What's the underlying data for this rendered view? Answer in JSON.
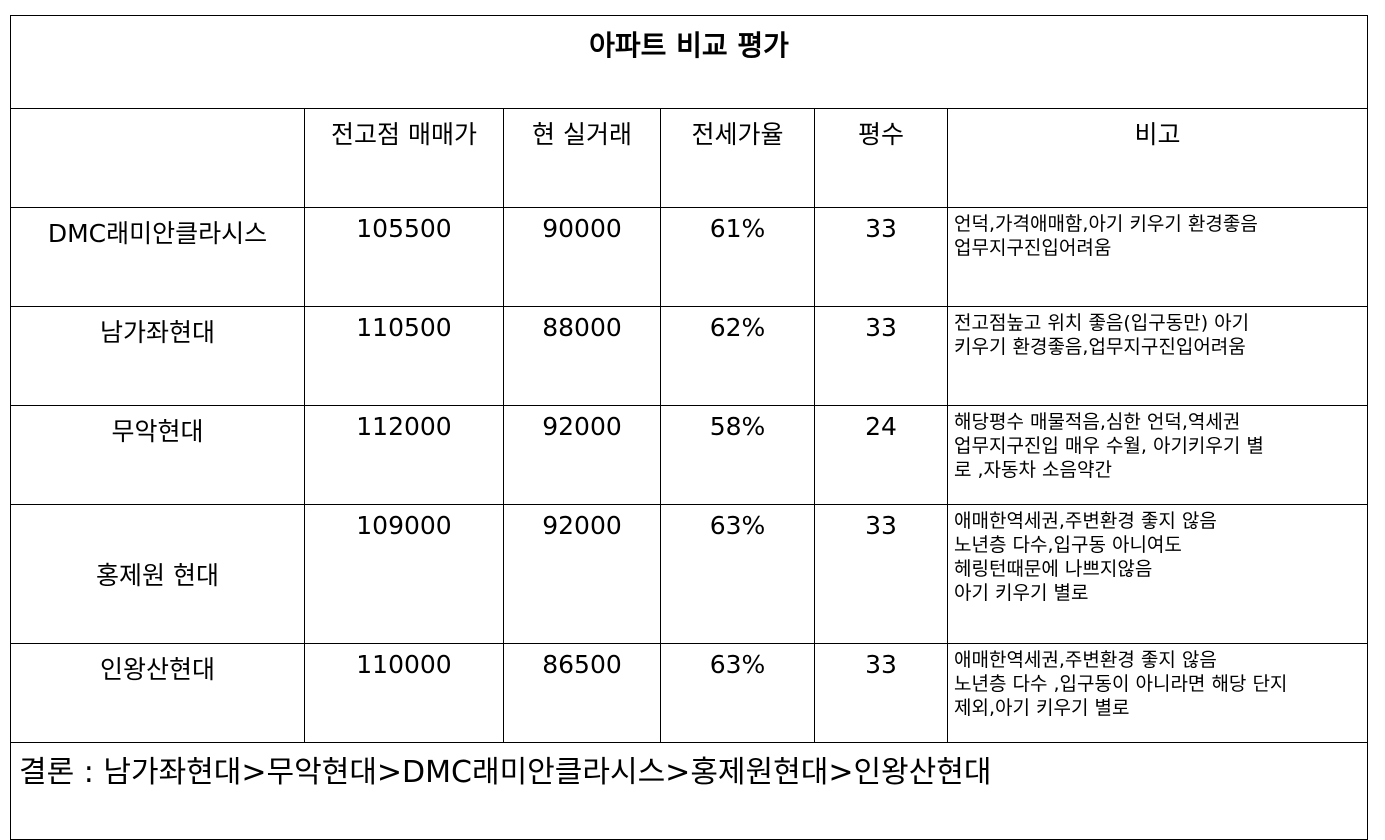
{
  "title": "아파트 비교 평가",
  "headers": [
    "",
    "전고점 매매가",
    "현 실거래",
    "전세가율",
    "평수",
    "비고"
  ],
  "rows": [
    {
      "name": "DMC래미안클라시스",
      "peak_price": "105500",
      "current_price": "90000",
      "jeonse_ratio": "61%",
      "size": "33",
      "notes": [
        "언덕,가격애매함,아기 키우기 환경좋음",
        "업무지구진입어려움"
      ]
    },
    {
      "name": "남가좌현대",
      "peak_price": "110500",
      "current_price": "88000",
      "jeonse_ratio": "62%",
      "size": "33",
      "notes": [
        "전고점높고 위치 좋음(입구동만) 아기",
        "키우기 환경좋음,업무지구진입어려움"
      ]
    },
    {
      "name": "무악현대",
      "peak_price": "112000",
      "current_price": "92000",
      "jeonse_ratio": "58%",
      "size": "24",
      "notes": [
        "해당평수 매물적음,심한 언덕,역세권",
        "업무지구진입 매우 수월, 아기키우기 별",
        "로 ,자동차 소음약간"
      ]
    },
    {
      "name": "홍제원 현대",
      "peak_price": "109000",
      "current_price": "92000",
      "jeonse_ratio": "63%",
      "size": "33",
      "notes": [
        "애매한역세권,주변환경 좋지 않음",
        "노년층 다수,입구동 아니여도",
        "헤링턴때문에 나쁘지않음",
        "아기 키우기 별로"
      ]
    },
    {
      "name": "인왕산현대",
      "peak_price": "110000",
      "current_price": "86500",
      "jeonse_ratio": "63%",
      "size": "33",
      "notes": [
        "애매한역세권,주변환경 좋지 않음",
        "노년층 다수 ,입구동이 아니라면 해당 단지",
        "제외,아기 키우기 별로"
      ]
    }
  ],
  "conclusion": "결론 :  남가좌현대>무악현대>DMC래미안클라시스>홍제원현대>인왕산현대"
}
